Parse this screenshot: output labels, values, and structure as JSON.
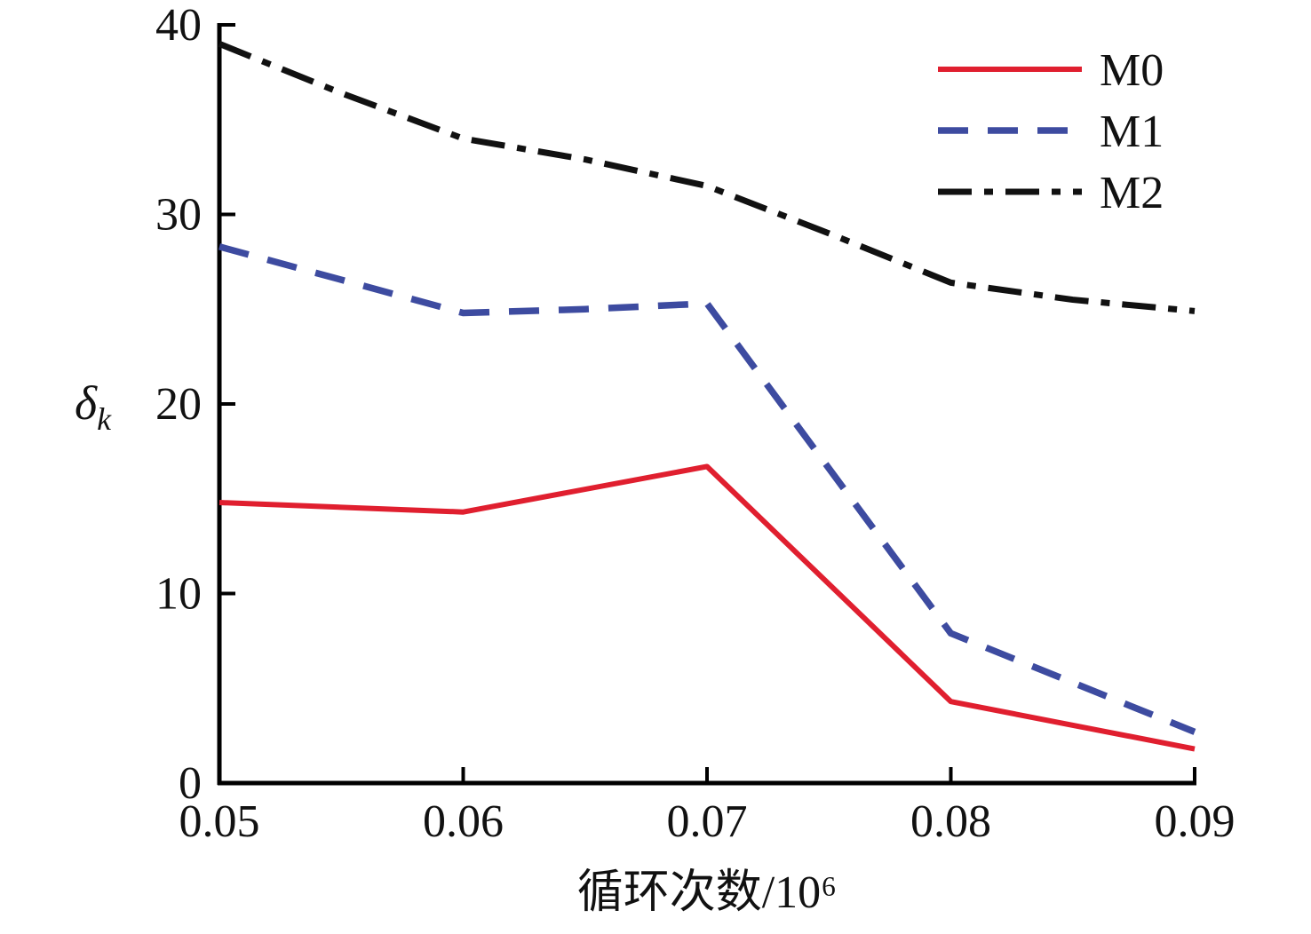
{
  "chart_data": {
    "type": "line",
    "title": "",
    "xlabel": "循环次数/10⁶",
    "ylabel_symbol": "δ",
    "ylabel_subscript": "k",
    "xlim": [
      0.05,
      0.09
    ],
    "ylim": [
      0,
      40
    ],
    "x_ticks": [
      0.05,
      0.06,
      0.07,
      0.08,
      0.09
    ],
    "x_tick_labels": [
      "0.05",
      "0.06",
      "0.07",
      "0.08",
      "0.09"
    ],
    "y_ticks": [
      0,
      10,
      20,
      30,
      40
    ],
    "y_tick_labels": [
      "0",
      "10",
      "20",
      "30",
      "40"
    ],
    "grid": false,
    "legend_position": "top-right",
    "series": [
      {
        "name": "M0",
        "color": "#e01f2f",
        "style": "solid",
        "x": [
          0.05,
          0.06,
          0.07,
          0.08,
          0.09
        ],
        "values": [
          14.8,
          14.3,
          16.7,
          4.3,
          1.8
        ]
      },
      {
        "name": "M1",
        "color": "#3d4ba0",
        "style": "dashed",
        "x": [
          0.05,
          0.06,
          0.065,
          0.07,
          0.08,
          0.09
        ],
        "values": [
          28.3,
          24.8,
          25.0,
          25.3,
          7.9,
          2.7
        ]
      },
      {
        "name": "M2",
        "color": "#111111",
        "style": "dashdot",
        "x": [
          0.05,
          0.055,
          0.06,
          0.065,
          0.07,
          0.075,
          0.08,
          0.085,
          0.09
        ],
        "values": [
          39.0,
          36.4,
          34.0,
          32.9,
          31.5,
          29.0,
          26.4,
          25.5,
          24.9
        ]
      }
    ]
  }
}
